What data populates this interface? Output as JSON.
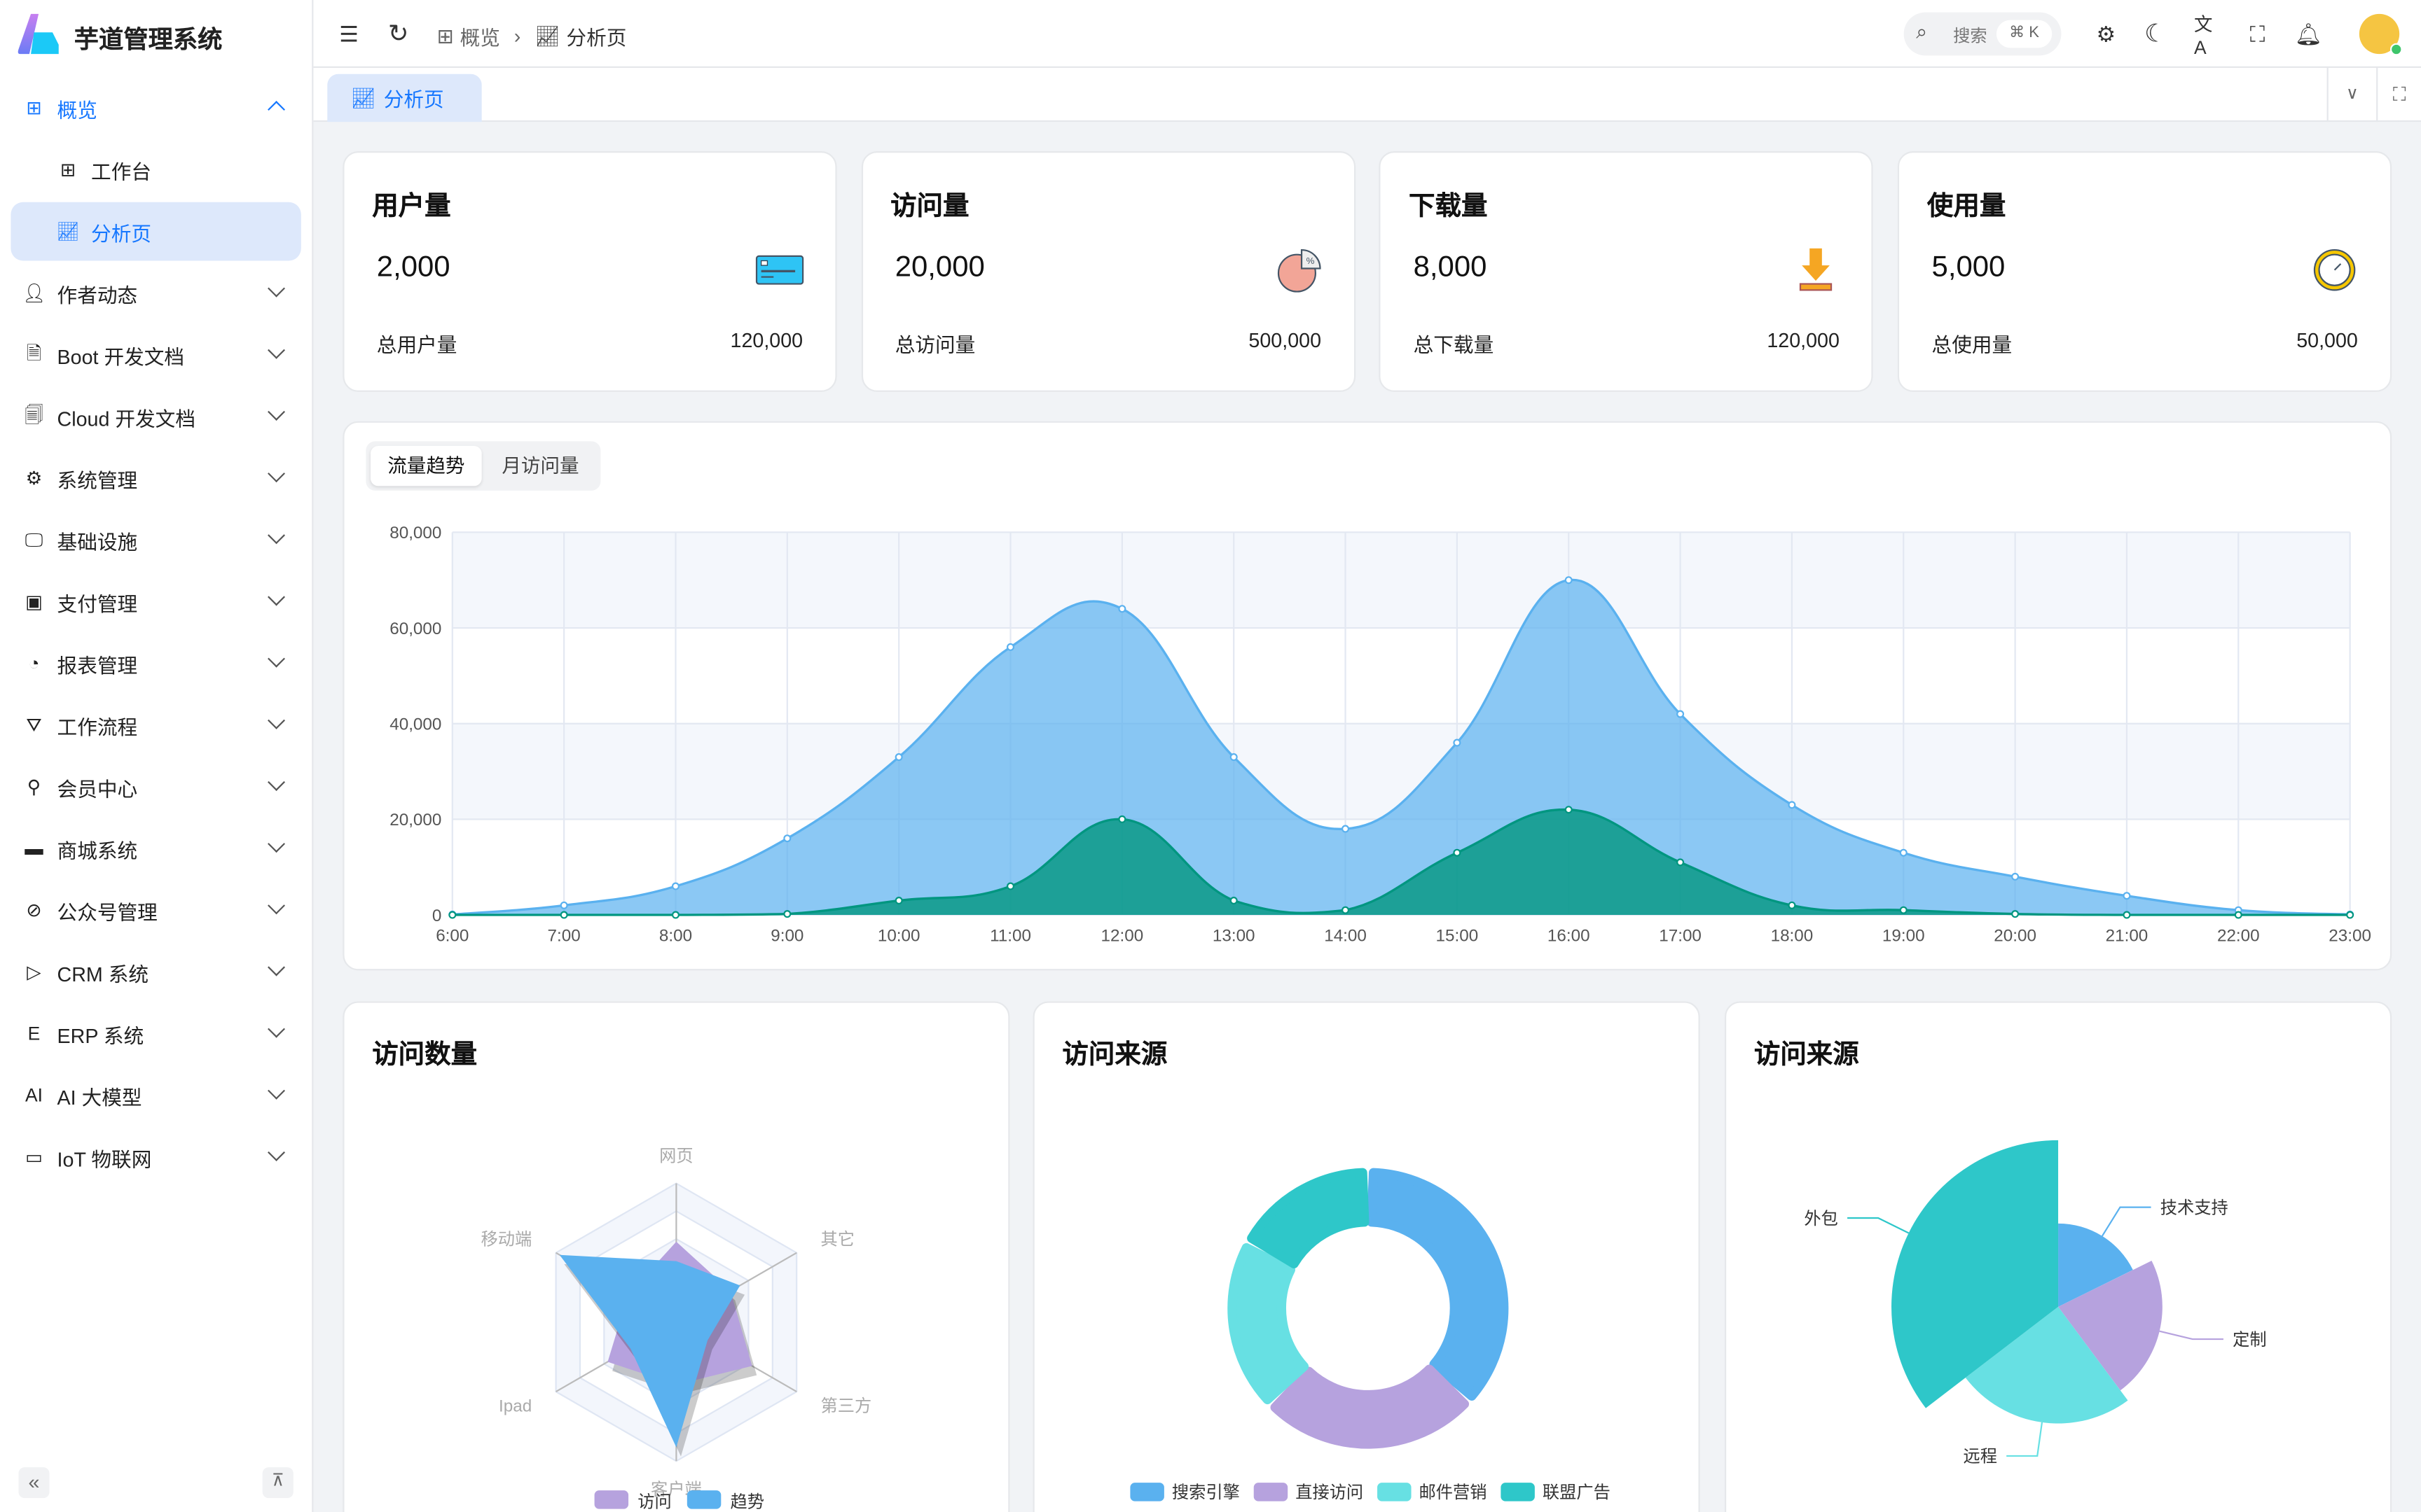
{
  "app": {
    "title": "芋道管理系统"
  },
  "sidebar": {
    "items": [
      {
        "label": "概览",
        "icon": "dashboard-icon",
        "state": "expanded"
      },
      {
        "label": "工作台",
        "icon": "workspace-icon",
        "sub": true
      },
      {
        "label": "分析页",
        "icon": "chart-icon",
        "sub": true,
        "active": true
      },
      {
        "label": "作者动态",
        "icon": "user-icon"
      },
      {
        "label": "Boot 开发文档",
        "icon": "document-icon"
      },
      {
        "label": "Cloud 开发文档",
        "icon": "documents-icon"
      },
      {
        "label": "系统管理",
        "icon": "gear-icon"
      },
      {
        "label": "基础设施",
        "icon": "monitor-icon"
      },
      {
        "label": "支付管理",
        "icon": "payment-icon"
      },
      {
        "label": "报表管理",
        "icon": "pie-icon"
      },
      {
        "label": "工作流程",
        "icon": "workflow-icon"
      },
      {
        "label": "会员中心",
        "icon": "bicycle-icon"
      },
      {
        "label": "商城系统",
        "icon": "shop-icon"
      },
      {
        "label": "公众号管理",
        "icon": "compass-icon"
      },
      {
        "label": "CRM 系统",
        "icon": "crm-icon"
      },
      {
        "label": "ERP 系统",
        "icon": "erp-icon"
      },
      {
        "label": "AI 大模型",
        "icon": "ai-icon"
      },
      {
        "label": "IoT 物联网",
        "icon": "iot-icon"
      }
    ]
  },
  "header": {
    "breadcrumb": [
      "概览",
      "分析页"
    ],
    "search_placeholder": "搜索",
    "search_shortcut": "⌘ K"
  },
  "tabs": [
    {
      "label": "分析页",
      "active": true
    }
  ],
  "stats": [
    {
      "title": "用户量",
      "value": "2,000",
      "label": "总用户量",
      "total": "120,000",
      "icon": "credit-card-icon"
    },
    {
      "title": "访问量",
      "value": "20,000",
      "label": "总访问量",
      "total": "500,000",
      "icon": "pie-percent-icon"
    },
    {
      "title": "下载量",
      "value": "8,000",
      "label": "总下载量",
      "total": "120,000",
      "icon": "download-icon"
    },
    {
      "title": "使用量",
      "value": "5,000",
      "label": "总使用量",
      "total": "50,000",
      "icon": "clock-icon"
    }
  ],
  "trend": {
    "tabs": [
      "流量趋势",
      "月访问量"
    ],
    "active_tab": 0
  },
  "chart_data": [
    {
      "type": "area",
      "x": [
        "6:00",
        "7:00",
        "8:00",
        "9:00",
        "10:00",
        "11:00",
        "12:00",
        "13:00",
        "14:00",
        "15:00",
        "16:00",
        "17:00",
        "18:00",
        "19:00",
        "20:00",
        "21:00",
        "22:00",
        "23:00"
      ],
      "ylim": [
        0,
        80000
      ],
      "yticks": [
        "0",
        "20,000",
        "40,000",
        "60,000",
        "80,000"
      ],
      "grid": true,
      "series": [
        {
          "values": [
            100,
            2000,
            6000,
            16000,
            33000,
            56000,
            64000,
            33000,
            18000,
            36000,
            70000,
            42000,
            23000,
            13000,
            8000,
            4000,
            1000,
            100
          ],
          "color": "#5ab1ef"
        },
        {
          "values": [
            0,
            0,
            0,
            200,
            3000,
            6000,
            20000,
            3000,
            1000,
            13000,
            22000,
            11000,
            2000,
            1000,
            200,
            0,
            0,
            0
          ],
          "color": "#019680"
        }
      ]
    },
    {
      "type": "radar",
      "title": "访问数量",
      "indicators": [
        "网页",
        "其它",
        "第三方",
        "客户端",
        "Ipad",
        "移动端"
      ],
      "max": 100,
      "series": [
        {
          "name": "访问",
          "values": [
            58,
            45,
            63,
            45,
            57,
            40
          ],
          "color": "#b6a2de"
        },
        {
          "name": "趋势",
          "values": [
            44,
            53,
            26,
            90,
            38,
            97
          ],
          "color": "#5ab1ef"
        }
      ]
    },
    {
      "type": "pie",
      "title": "访问来源",
      "donut": true,
      "legend": "bottom",
      "slices": [
        {
          "name": "搜索引擎",
          "value": 1048,
          "color": "#5ab1ef"
        },
        {
          "name": "直接访问",
          "value": 735,
          "color": "#b6a2de"
        },
        {
          "name": "邮件营销",
          "value": 580,
          "color": "#67e0e3"
        },
        {
          "name": "联盟广告",
          "value": 484,
          "color": "#2ec7c9"
        }
      ]
    },
    {
      "type": "pie",
      "title": "访问来源",
      "rose": true,
      "slices": [
        {
          "name": "技术支持",
          "value": 20,
          "color": "#5ab1ef"
        },
        {
          "name": "定制",
          "value": 25,
          "color": "#b6a2de"
        },
        {
          "name": "远程",
          "value": 28,
          "color": "#67e0e3"
        },
        {
          "name": "外包",
          "value": 40,
          "color": "#2ec7c9"
        }
      ]
    }
  ]
}
